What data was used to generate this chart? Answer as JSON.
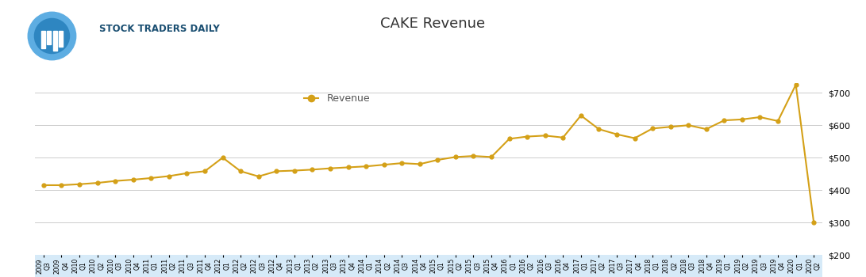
{
  "title": "CAKE Revenue",
  "line_color": "#D4A017",
  "background_color": "#FFFFFF",
  "plot_bg_color": "#FFFFFF",
  "grid_color": "#CCCCCC",
  "ylim": [
    200,
    730
  ],
  "yticks": [
    200,
    300,
    400,
    500,
    600,
    700
  ],
  "legend_label": "Revenue",
  "quarters": [
    "2009-Q3",
    "2009-Q4",
    "2010-Q1",
    "2010-Q2",
    "2010-Q3",
    "2010-Q4",
    "2011-Q1",
    "2011-Q2",
    "2011-Q3",
    "2011-Q4",
    "2012-Q1",
    "2012-Q2",
    "2012-Q3",
    "2012-Q4",
    "2013-Q1",
    "2013-Q2",
    "2013-Q3",
    "2013-Q4",
    "2014-Q1",
    "2014-Q2",
    "2014-Q3",
    "2014-Q4",
    "2015-Q1",
    "2015-Q2",
    "2015-Q3",
    "2015-Q4",
    "2016-Q1",
    "2016-Q2",
    "2016-Q3",
    "2016-Q4",
    "2017-Q1",
    "2017-Q2",
    "2017-Q3",
    "2017-Q4",
    "2018-Q1",
    "2018-Q2",
    "2018-Q3",
    "2018-Q4",
    "2019-Q1",
    "2019-Q2",
    "2019-Q3",
    "2019-Q4",
    "2020-Q1",
    "2020-Q2"
  ],
  "values": [
    415,
    415,
    418,
    422,
    428,
    432,
    437,
    443,
    452,
    458,
    500,
    458,
    442,
    458,
    460,
    463,
    467,
    470,
    473,
    478,
    483,
    480,
    493,
    502,
    505,
    502,
    558,
    565,
    568,
    562,
    630,
    588,
    572,
    560,
    590,
    595,
    600,
    588,
    615,
    618,
    625,
    613,
    725,
    300
  ],
  "xaxis_band_color": "#D6EAF8",
  "title_fontsize": 13,
  "legend_fontsize": 9,
  "ytick_fontsize": 8,
  "xtick_fontsize": 5.5,
  "line_width": 1.5,
  "marker_size": 3.5,
  "logo_circle_color": "#2980B9",
  "logo_text": "STOCK TRADERS DAILY",
  "logo_text_color": "#1B4F72",
  "logo_fontsize": 8.5
}
